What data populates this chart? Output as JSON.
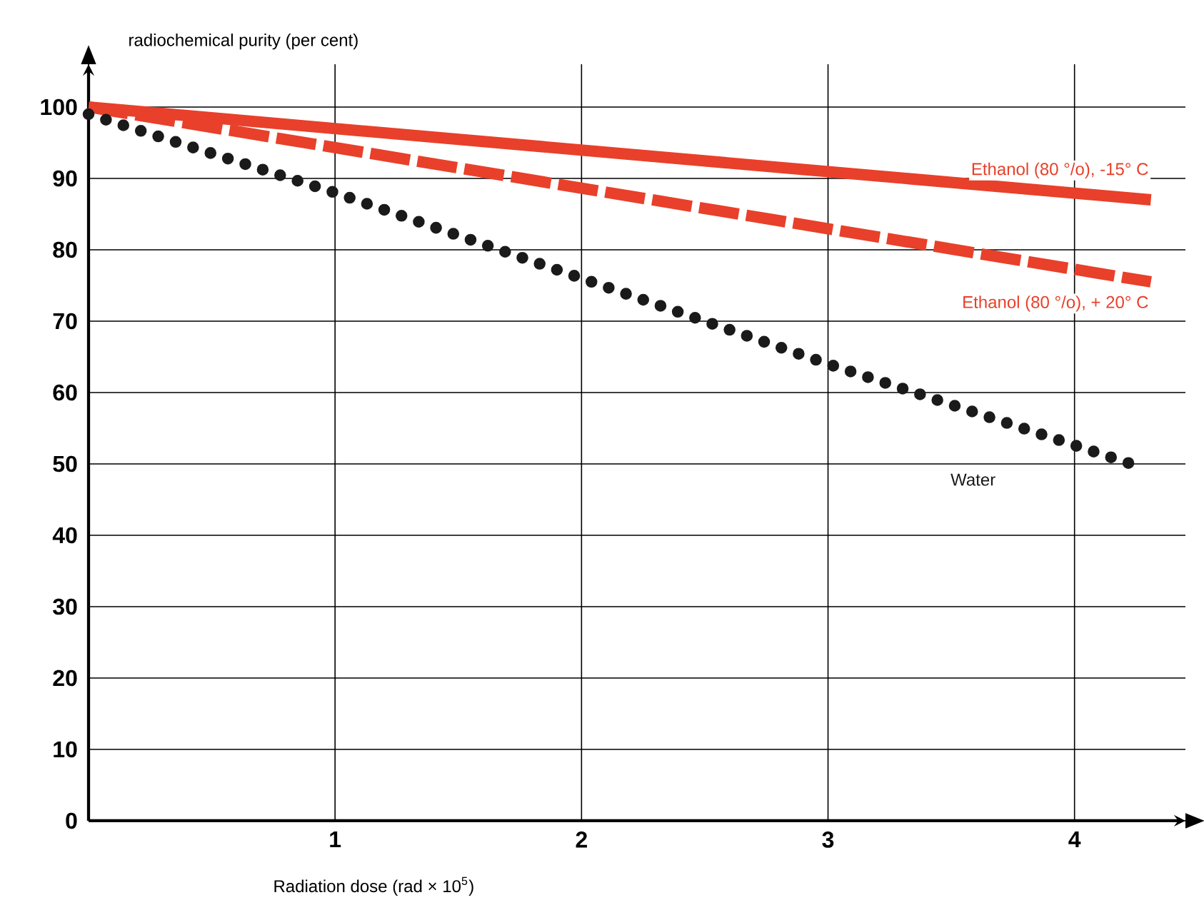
{
  "chart_data": {
    "type": "line",
    "xlabel": "Radiation dose (rad × 10$^{5}$)",
    "ylabel": "radiochemical purity (per cent)",
    "xlim": [
      0,
      4.45
    ],
    "ylim": [
      0,
      106
    ],
    "xticks": [
      {
        "value": 0,
        "label": null
      },
      1,
      2,
      3,
      4
    ],
    "yticks": [
      0,
      10,
      20,
      30,
      40,
      50,
      60,
      70,
      80,
      90,
      100
    ],
    "grid": true,
    "series": [
      {
        "name": "Ethanol (80 °/o), -15° C",
        "color": "#e8402a",
        "line_style": "solid",
        "x": [
          0,
          4.31
        ],
        "values": [
          100,
          87
        ]
      },
      {
        "name": "Ethanol (80 °/o), + 20° C",
        "color": "#e8402a",
        "line_style": "dashed",
        "x": [
          0,
          4.31
        ],
        "values": [
          100,
          75.5
        ]
      },
      {
        "name": "Water",
        "color": "#1a1a1a",
        "line_style": "dotted",
        "x": [
          0,
          1,
          2,
          3,
          4.23
        ],
        "values": [
          99,
          88,
          76,
          64,
          50
        ]
      }
    ]
  }
}
